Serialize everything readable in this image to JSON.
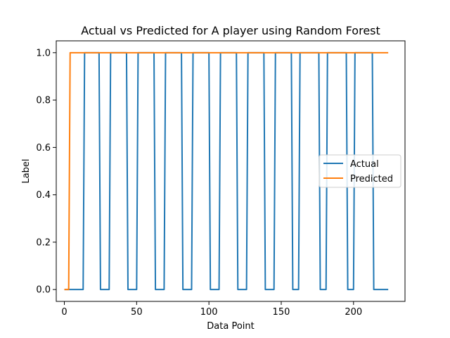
{
  "chart_data": {
    "type": "line",
    "title": "Actual vs Predicted for A player using Random Forest",
    "xlabel": "Data Point",
    "ylabel": "Label",
    "xlim": [
      -5.6,
      235.6
    ],
    "ylim": [
      -0.05,
      1.05
    ],
    "xticks": [
      0,
      50,
      100,
      150,
      200
    ],
    "yticks": [
      0.0,
      0.2,
      0.4,
      0.6,
      0.8,
      1.0
    ],
    "xtick_labels": [
      "0",
      "50",
      "100",
      "150",
      "200"
    ],
    "ytick_labels": [
      "0.0",
      "0.2",
      "0.4",
      "0.6",
      "0.8",
      "1.0"
    ],
    "grid": false,
    "legend": {
      "placement": "center-right",
      "entries": [
        "Actual",
        "Predicted"
      ]
    },
    "series": [
      {
        "name": "Actual",
        "color": "#1f77b4",
        "x": [
          0,
          13,
          14,
          24,
          25,
          31,
          32,
          43,
          44,
          50,
          51,
          62,
          63,
          69,
          70,
          81,
          82,
          88,
          89,
          100,
          101,
          107,
          108,
          119,
          120,
          126,
          127,
          138,
          139,
          145,
          146,
          157,
          158,
          162,
          163,
          176,
          177,
          181,
          182,
          195,
          196,
          200,
          201,
          213,
          214,
          224
        ],
        "y": [
          0,
          0,
          1,
          1,
          0,
          0,
          1,
          1,
          0,
          0,
          1,
          1,
          0,
          0,
          1,
          1,
          0,
          0,
          1,
          1,
          0,
          0,
          1,
          1,
          0,
          0,
          1,
          1,
          0,
          0,
          1,
          1,
          0,
          0,
          1,
          1,
          0,
          0,
          1,
          1,
          0,
          0,
          1,
          1,
          0,
          0
        ]
      },
      {
        "name": "Predicted",
        "color": "#ff7f0e",
        "x": [
          0,
          3,
          4,
          224
        ],
        "y": [
          0,
          0,
          1,
          1
        ]
      }
    ]
  }
}
